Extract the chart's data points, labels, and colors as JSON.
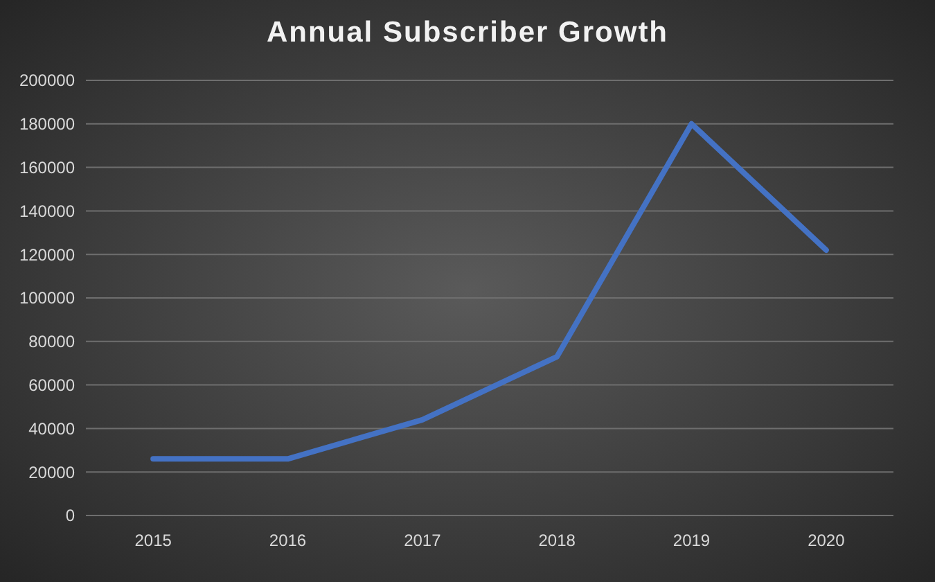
{
  "chart_data": {
    "type": "line",
    "title": "Annual Subscriber Growth",
    "categories": [
      "2015",
      "2016",
      "2017",
      "2018",
      "2019",
      "2020"
    ],
    "series": [
      {
        "color": "#4472c4",
        "values": [
          26000,
          26000,
          44000,
          73000,
          180000,
          122000
        ]
      }
    ],
    "ylim": [
      0,
      200000
    ],
    "yticks": [
      0,
      20000,
      40000,
      60000,
      80000,
      100000,
      120000,
      140000,
      160000,
      180000,
      200000
    ],
    "grid": "y",
    "marker": "none",
    "line_style": "solid"
  }
}
